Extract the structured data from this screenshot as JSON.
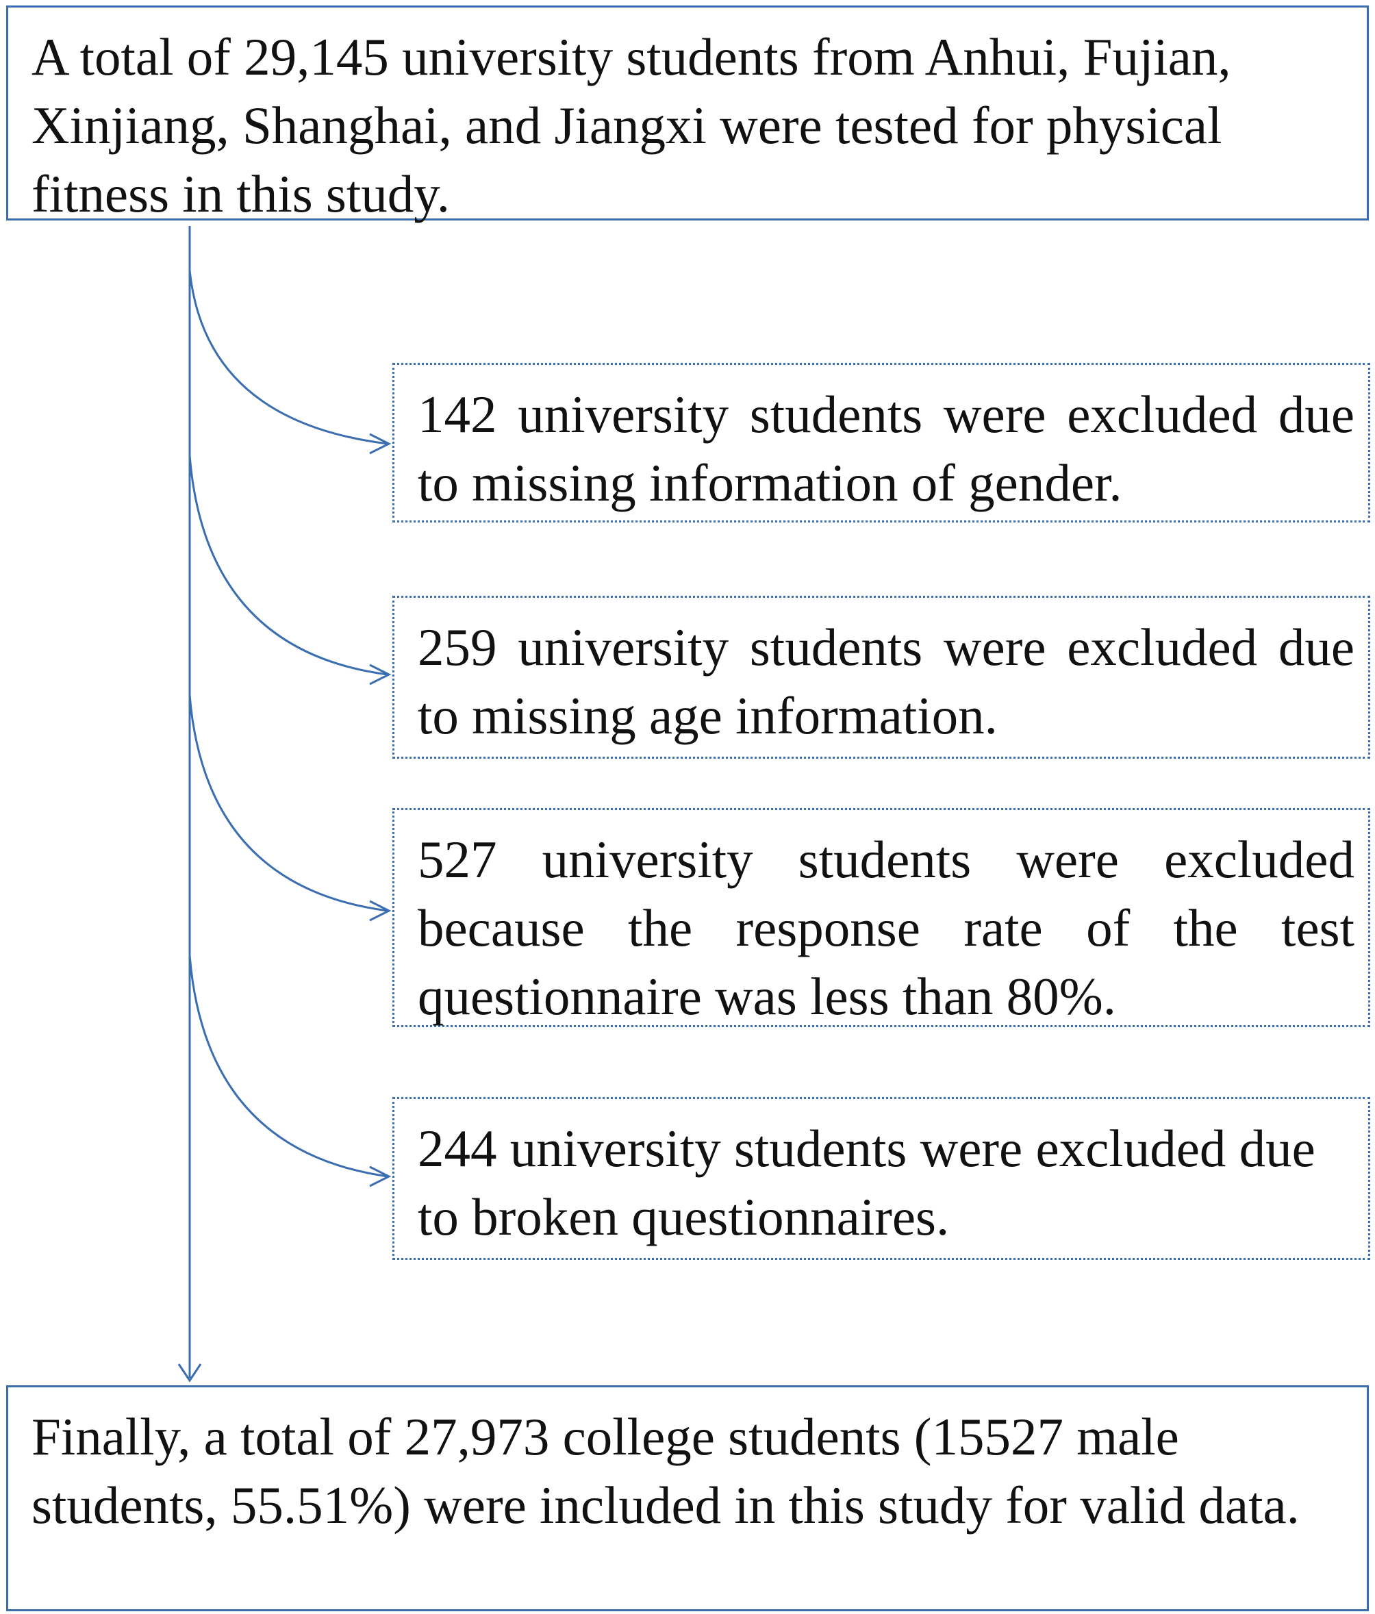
{
  "diagram": {
    "start_box": {
      "text": "A total of 29,145 university students from Anhui, Fujian, Xinjiang, Shanghai, and Jiangxi were tested for physical fitness in this study."
    },
    "exclusions": [
      {
        "text": "142 university students were excluded due to missing information of gender."
      },
      {
        "text": "259 university students were excluded due to missing age information."
      },
      {
        "text": "527 university students were excluded because the response rate of the test questionnaire was less than 80%."
      },
      {
        "text": "244 university students were excluded due to broken questionnaires."
      }
    ],
    "final_box": {
      "text": "Finally, a total of 27,973 college students (15527 male students, 55.51%) were included in this study for valid data."
    },
    "colors": {
      "line": "#3a6eb0",
      "text": "#111111",
      "background": "#ffffff"
    }
  }
}
